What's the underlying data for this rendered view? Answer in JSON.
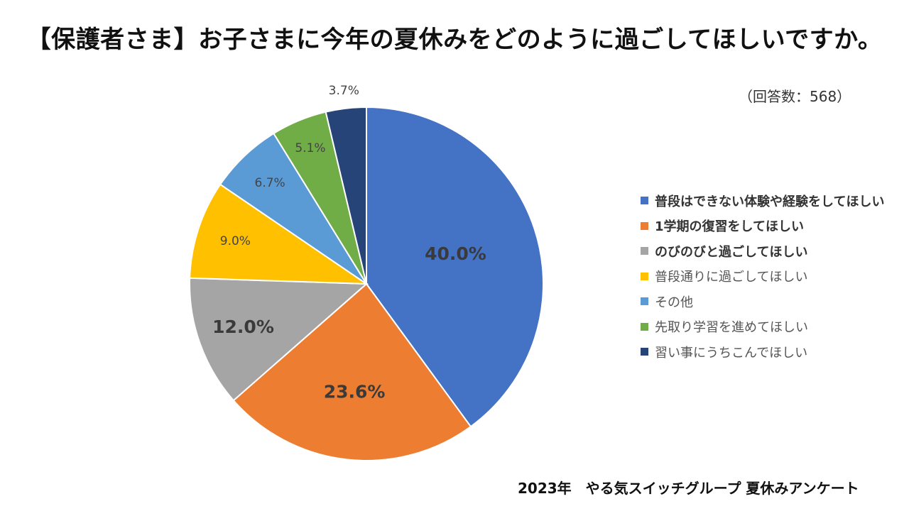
{
  "page": {
    "title": "【保護者さま】お子さまに今年の夏休みをどのように過ごしてほしいですか。",
    "respondents": "（回答数：568）",
    "footer": "2023年　やる気スイッチグループ 夏休みアンケート"
  },
  "chart_data": {
    "type": "pie",
    "start_angle_deg": 0,
    "direction": "clockwise",
    "legend_position": "right",
    "slices": [
      {
        "label": "普段はできない体験や経験をしてほしい",
        "value": 40.0,
        "display": "40.0%",
        "color": "#4472C4",
        "emphasis": true
      },
      {
        "label": "1学期の復習をしてほしい",
        "value": 23.6,
        "display": "23.6%",
        "color": "#ED7D31",
        "emphasis": true
      },
      {
        "label": "のびのびと過ごしてほしい",
        "value": 12.0,
        "display": "12.0%",
        "color": "#A5A5A5",
        "emphasis": true
      },
      {
        "label": "普段通りに過ごしてほしい",
        "value": 9.0,
        "display": "9.0%",
        "color": "#FFC000",
        "emphasis": false
      },
      {
        "label": "その他",
        "value": 6.7,
        "display": "6.7%",
        "color": "#5B9BD5",
        "emphasis": false
      },
      {
        "label": "先取り学習を進めてほしい",
        "value": 5.1,
        "display": "5.1%",
        "color": "#70AD47",
        "emphasis": false
      },
      {
        "label": "習い事にうちこんでほしい",
        "value": 3.7,
        "display": "3.7%",
        "color": "#264478",
        "emphasis": false
      }
    ]
  }
}
